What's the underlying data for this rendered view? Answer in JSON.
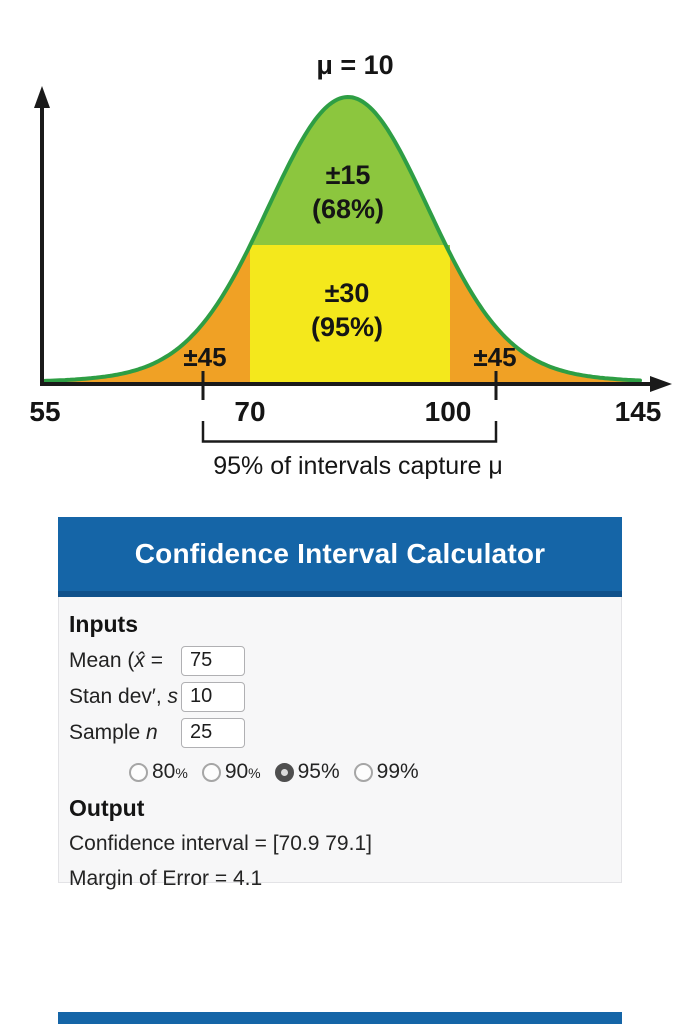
{
  "chart": {
    "title": "μ = 10",
    "bands": {
      "inner_line1": "±15",
      "inner_line2": "(68%)",
      "middle_line1": "±30",
      "middle_line2": "(95%)",
      "outer_left": "±45",
      "outer_right": "±45"
    },
    "x_axis_labels": [
      "55",
      "70",
      "100",
      "145"
    ],
    "caption": "95% of intervals capture μ",
    "colors": {
      "curve_stroke": "#2E9E44",
      "inner_fill": "#8CC63E",
      "middle_fill": "#F4E81C",
      "outer_fill": "#F0A125",
      "axis": "#1A1A1A"
    }
  },
  "chart_data": {
    "type": "area",
    "title": "μ = 10",
    "description": "Stylized normal distribution with shaded confidence bands",
    "x_ticks": [
      55,
      70,
      100,
      145
    ],
    "bands": [
      {
        "label": "±15",
        "percent": 68,
        "color": "#8CC63E"
      },
      {
        "label": "±30",
        "percent": 95,
        "color": "#F4E81C"
      },
      {
        "label": "±45",
        "side": "left",
        "color": "#F0A125"
      },
      {
        "label": "±45",
        "side": "right",
        "color": "#F0A125"
      }
    ],
    "bracket_interval": [
      70,
      100
    ],
    "caption": "95% of intervals capture μ"
  },
  "calculator": {
    "header": "Confidence Interval Calculator",
    "header_color": "#1565A7",
    "inputs_heading": "Inputs",
    "rows": [
      {
        "label_prefix": "Mean (",
        "label_var": "x̂",
        "label_suffix": " =",
        "value": "75"
      },
      {
        "label_prefix": "Stan dev′, ",
        "label_var": "s",
        "label_suffix": "",
        "value": "10"
      },
      {
        "label_prefix": "Sample ",
        "label_var": "n",
        "label_suffix": "",
        "value": "25"
      }
    ],
    "confidence_options": [
      {
        "num": "80",
        "pct": "%",
        "small_pct": true,
        "selected": false
      },
      {
        "num": "90",
        "pct": "%",
        "small_pct": true,
        "selected": false
      },
      {
        "num": "95",
        "pct": "%",
        "small_pct": false,
        "selected": true
      },
      {
        "num": "99",
        "pct": "%",
        "small_pct": false,
        "selected": false
      }
    ],
    "output_heading": "Output",
    "output_lines": [
      "Confidence interval = [70.9  79.1]",
      "Margin of Error = 4.1"
    ]
  }
}
